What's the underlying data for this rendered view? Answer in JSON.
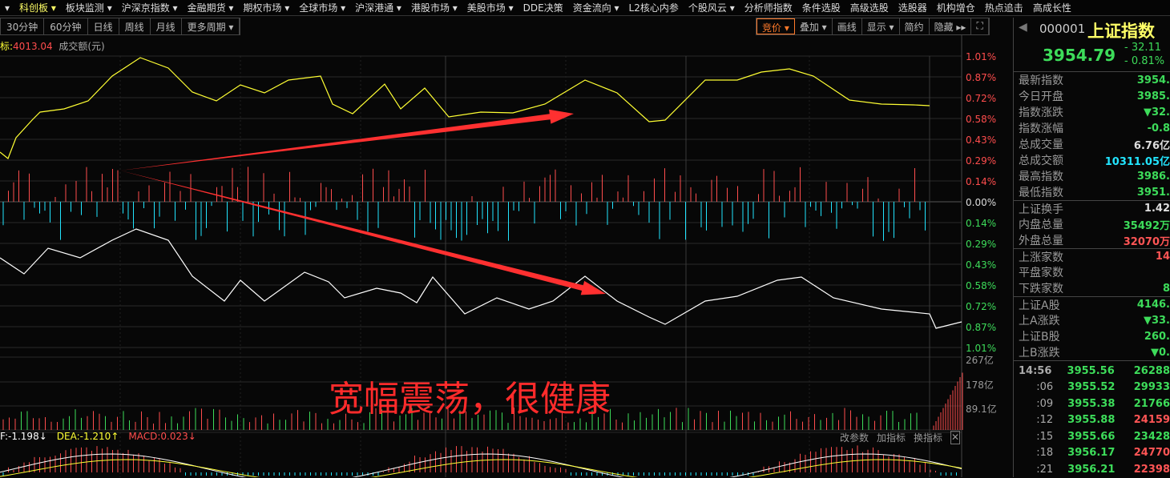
{
  "menu": [
    "▾",
    "科创板 ▾",
    "板块监测 ▾",
    "沪深京指数 ▾",
    "金融期货 ▾",
    "期权市场 ▾",
    "全球市场 ▾",
    "沪深港通 ▾",
    "港股市场 ▾",
    "美股市场 ▾",
    "DDE决策",
    "资金流向 ▾",
    "L2核心内参",
    "个股风云 ▾",
    "分析师指数",
    "条件选股",
    "高级选股",
    "选股器",
    "机构增仓",
    "热点追击",
    "高成长性"
  ],
  "periods": [
    "30分钟",
    "60分钟",
    "日线",
    "周线",
    "月线",
    "更多周期 ▾"
  ],
  "tools": [
    "竞价 ▾",
    "叠加 ▾",
    "画线",
    "显示 ▾",
    "简约",
    "隐藏 ▸▸",
    "⛶"
  ],
  "legend": {
    "label": "标:",
    "value": "4013.04",
    "volume_label": "成交额(元)"
  },
  "price_axis": {
    "up": [
      "1.01%",
      "0.87%",
      "0.72%",
      "0.58%",
      "0.43%",
      "0.29%",
      "0.14%"
    ],
    "zero": "0.00%",
    "down": [
      "0.14%",
      "0.29%",
      "0.43%",
      "0.58%",
      "0.72%",
      "0.87%",
      "1.01%"
    ]
  },
  "volume_axis": [
    "267亿",
    "178亿",
    "89.1亿"
  ],
  "annotation": "宽幅震荡，很健康",
  "macd": {
    "dif": "F:-1.198↓",
    "dea": "DEA:-1.210↑",
    "macd": "MACD:0.023↓"
  },
  "indicator_buttons": [
    "改参数",
    "加指标",
    "换指标",
    "✕"
  ],
  "quote": {
    "code": "000001",
    "name": "上证指数",
    "price": "3954.79",
    "change": "- 32.11",
    "change_pct": "- 0.81%"
  },
  "stats": [
    {
      "label": "最新指数",
      "value": "3954.",
      "color": "#3ddc5a"
    },
    {
      "label": "今日开盘",
      "value": "3985.",
      "color": "#3ddc5a"
    },
    {
      "label": "指数涨跌",
      "value": "▼32.",
      "color": "#3ddc5a"
    },
    {
      "label": "指数涨幅",
      "value": "-0.8",
      "color": "#3ddc5a"
    },
    {
      "label": "总成交量",
      "value": "6.76亿",
      "color": "#ddd"
    },
    {
      "label": "总成交额",
      "value": "10311.05亿",
      "color": "#22e5ff"
    },
    {
      "label": "最高指数",
      "value": "3986.",
      "color": "#3ddc5a"
    },
    {
      "label": "最低指数",
      "value": "3951.",
      "color": "#3ddc5a"
    },
    {
      "label": "上证换手",
      "value": "1.42",
      "color": "#ddd",
      "sep": true
    },
    {
      "label": "内盘总量",
      "value": "35492万",
      "color": "#3ddc5a"
    },
    {
      "label": "外盘总量",
      "value": "32070万",
      "color": "#ff5555"
    },
    {
      "label": "上涨家数",
      "value": "14",
      "color": "#ff5555",
      "sep": true
    },
    {
      "label": "平盘家数",
      "value": "",
      "color": "#ddd"
    },
    {
      "label": "下跌家数",
      "value": "8",
      "color": "#3ddc5a"
    },
    {
      "label": "上证A股",
      "value": "4146.",
      "color": "#3ddc5a",
      "sep": true
    },
    {
      "label": "上A涨跌",
      "value": "▼33.",
      "color": "#3ddc5a"
    },
    {
      "label": "上证B股",
      "value": "260.",
      "color": "#3ddc5a"
    },
    {
      "label": "上B涨跌",
      "value": "▼0.",
      "color": "#3ddc5a"
    }
  ],
  "ticks": [
    {
      "time": "14:56",
      "price": "3955.56",
      "vol": "26288",
      "vc": "#3ddc5a"
    },
    {
      "time": ":06",
      "price": "3955.52",
      "vol": "29933",
      "vc": "#3ddc5a"
    },
    {
      "time": ":09",
      "price": "3955.38",
      "vol": "21766",
      "vc": "#3ddc5a"
    },
    {
      "time": ":12",
      "price": "3955.88",
      "vol": "24159",
      "vc": "#ff5555"
    },
    {
      "time": ":15",
      "price": "3955.66",
      "vol": "23428",
      "vc": "#3ddc5a"
    },
    {
      "time": ":18",
      "price": "3956.17",
      "vol": "24770",
      "vc": "#ff5555"
    },
    {
      "time": ":21",
      "price": "3956.21",
      "vol": "22398",
      "vc": "#ff5555"
    }
  ],
  "colors": {
    "up": "#ff4d4d",
    "down": "#3ddc5a",
    "price_line": "#ffff33",
    "avg_line": "#ffffff",
    "arrow": "#ff3030",
    "cyan": "#22e5ff"
  }
}
